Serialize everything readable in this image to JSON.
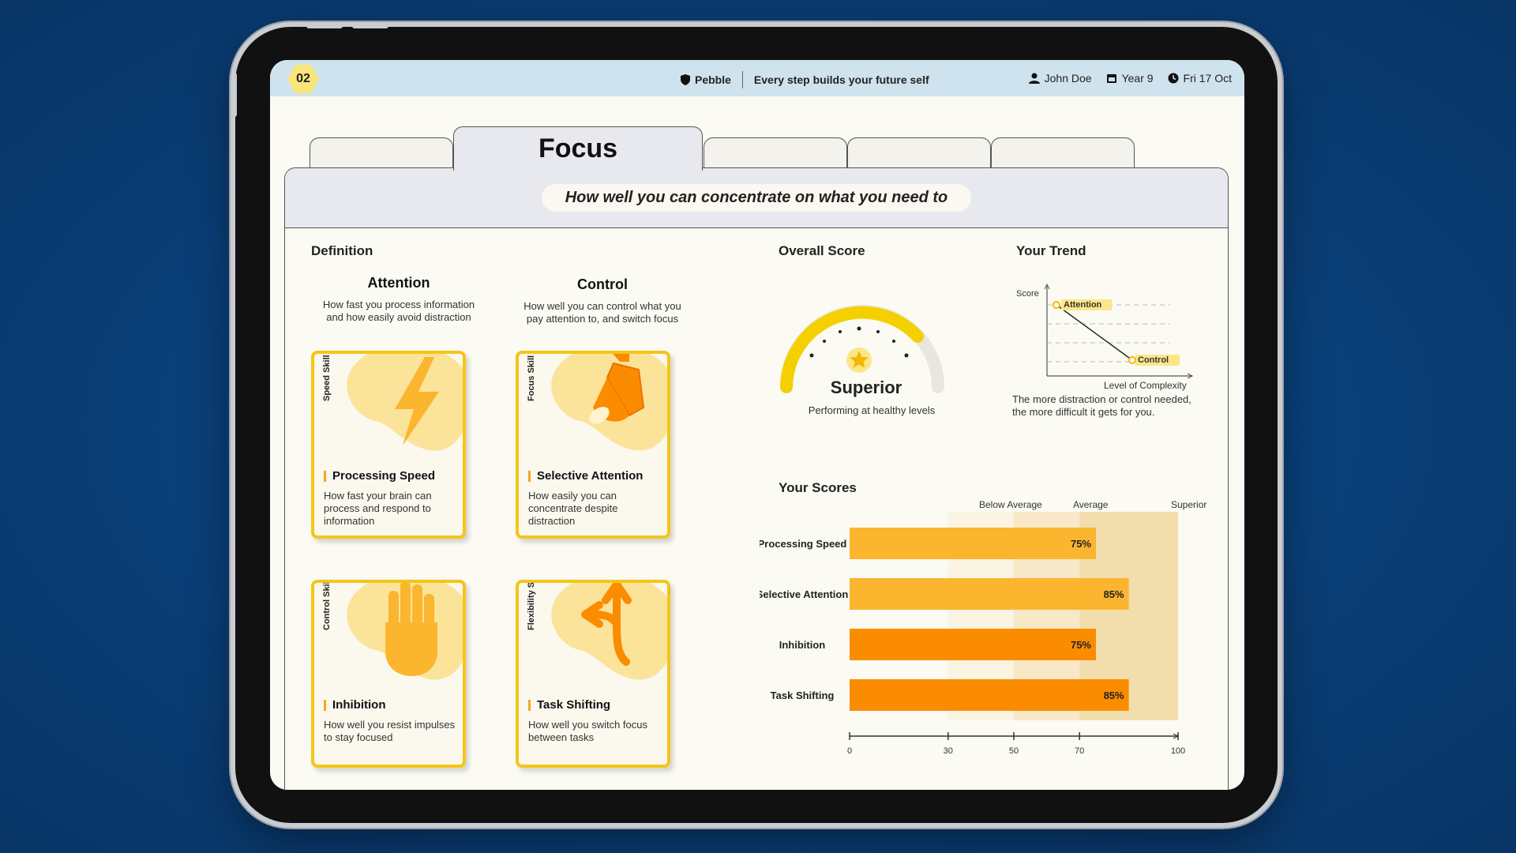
{
  "header": {
    "badge": "02",
    "brand": "Pebble",
    "tagline": "Every step builds your future self",
    "user": "John Doe",
    "year": "Year 9",
    "date": "Fri 17 Oct"
  },
  "tabs": {
    "active_label": "Focus"
  },
  "subtitle": "How well you can concentrate on what you need to",
  "definition": {
    "title": "Definition",
    "columns": [
      {
        "title": "Attention",
        "desc": "How fast you process information and how easily avoid distraction"
      },
      {
        "title": "Control",
        "desc": "How well you can control what you pay attention to, and switch focus"
      }
    ]
  },
  "cards": [
    {
      "tag": "Speed Skill",
      "name": "Processing Speed",
      "desc": "How fast your brain can process and respond to information",
      "icon": "lightning-icon"
    },
    {
      "tag": "Focus Skill",
      "name": "Selective Attention",
      "desc": "How easily you can concentrate despite distraction",
      "icon": "spotlight-icon"
    },
    {
      "tag": "Control  Skill",
      "name": "Inhibition",
      "desc": "How well you resist impulses to stay focused",
      "icon": "hand-stop-icon"
    },
    {
      "tag": "Flexibility Skill",
      "name": "Task Shifting",
      "desc": "How well you switch focus between tasks",
      "icon": "split-arrow-icon"
    }
  ],
  "overall": {
    "title": "Overall Score",
    "level": "Superior",
    "note": "Performing at healthy levels"
  },
  "trend": {
    "title": "Your Trend",
    "y_label": "Score",
    "x_label": "Level of Complexity",
    "point_a": "Attention",
    "point_b": "Control",
    "note": "The more distraction or control needed, the more difficult it gets for you."
  },
  "scores": {
    "title": "Your Scores",
    "bands": [
      "Below Average",
      "Average",
      "Superior"
    ],
    "ticks": [
      "0",
      "30",
      "50",
      "70",
      "100"
    ]
  },
  "chart_data": {
    "type": "bar",
    "orientation": "horizontal",
    "categories": [
      "Processing Speed",
      "Selective Attention",
      "Inhibition",
      "Task Shifting"
    ],
    "values": [
      75,
      85,
      75,
      85
    ],
    "value_labels": [
      "75%",
      "85%",
      "75%",
      "85%"
    ],
    "xlim": [
      0,
      100
    ],
    "bands": [
      {
        "name": "Below Average",
        "from": 30,
        "to": 50
      },
      {
        "name": "Average",
        "from": 50,
        "to": 70
      },
      {
        "name": "Superior",
        "from": 70,
        "to": 100
      }
    ],
    "colors": [
      "#fbb52f",
      "#fbb52f",
      "#fb8c00",
      "#fb8c00"
    ]
  },
  "colors": {
    "accent_yellow": "#f5c518",
    "topbar": "#cfe3ee",
    "background": "#0a3f78"
  }
}
